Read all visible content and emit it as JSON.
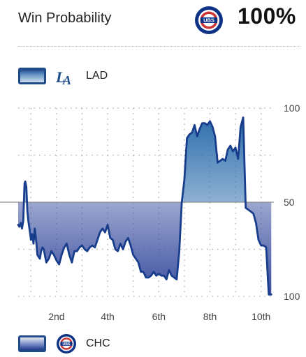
{
  "header": {
    "title": "Win Probability",
    "leader_logo": "cubs-logo-icon",
    "win_pct": "100%"
  },
  "legend": {
    "top": {
      "team": "LAD",
      "logo": "dodgers-logo-icon",
      "color": "#1f4a8a"
    },
    "bottom": {
      "team": "CHC",
      "logo": "cubs-logo-icon",
      "color": "#1f3a8a"
    }
  },
  "colors": {
    "line": "#173d8c",
    "lad_fill": "#2f6fad",
    "chc_fill": "#3b4fa0",
    "cubs_red": "#cc3433",
    "cubs_blue": "#0e3386",
    "grid": "#a6a6a6"
  },
  "chart_data": {
    "type": "area",
    "ylabel_ticks": [
      "100",
      "50",
      "100"
    ],
    "xtick_labels": [
      "2nd",
      "4th",
      "6th",
      "8th",
      "10th"
    ],
    "xtick_innings": [
      2,
      4,
      6,
      8,
      10
    ],
    "x_range": [
      0.5,
      10.5
    ],
    "baseline": 50,
    "grid": true,
    "series": [
      {
        "name": "LAD",
        "x": [
          0.5,
          0.55,
          0.6,
          0.65,
          0.7,
          0.75,
          0.78,
          0.82,
          0.86,
          0.9,
          0.95,
          1.0,
          1.05,
          1.1,
          1.15,
          1.2,
          1.25,
          1.3,
          1.35,
          1.4,
          1.45,
          1.5,
          1.6,
          1.7,
          1.8,
          1.9,
          2.0,
          2.1,
          2.2,
          2.3,
          2.4,
          2.5,
          2.6,
          2.7,
          2.8,
          2.9,
          3.0,
          3.1,
          3.2,
          3.3,
          3.4,
          3.5,
          3.6,
          3.7,
          3.8,
          3.9,
          4.0,
          4.1,
          4.2,
          4.3,
          4.4,
          4.5,
          4.6,
          4.7,
          4.8,
          4.9,
          5.0,
          5.1,
          5.2,
          5.3,
          5.4,
          5.5,
          5.6,
          5.7,
          5.8,
          5.9,
          6.0,
          6.1,
          6.2,
          6.3,
          6.4,
          6.5,
          6.6,
          6.7,
          6.8,
          6.9,
          7.0,
          7.1,
          7.2,
          7.3,
          7.4,
          7.5,
          7.6,
          7.7,
          7.8,
          7.9,
          8.0,
          8.1,
          8.2,
          8.3,
          8.4,
          8.5,
          8.6,
          8.7,
          8.8,
          8.9,
          9.0,
          9.1,
          9.2,
          9.3,
          9.4,
          9.5,
          9.6,
          9.7,
          9.8,
          9.9,
          10.0,
          10.1,
          10.2,
          10.3,
          10.4
        ],
        "y": [
          38,
          37,
          39,
          36,
          40,
          60,
          61,
          58,
          45,
          40,
          35,
          30,
          33,
          28,
          36,
          30,
          22,
          21,
          20,
          24,
          26,
          25,
          18,
          20,
          24,
          22,
          19,
          17,
          22,
          26,
          28,
          22,
          18,
          24,
          24,
          26,
          27,
          25,
          24,
          26,
          27,
          26,
          30,
          34,
          36,
          34,
          38,
          31,
          30,
          25,
          24,
          28,
          25,
          29,
          31,
          27,
          22,
          20,
          18,
          13,
          13,
          10,
          10,
          11,
          13,
          11,
          12,
          11,
          11,
          9,
          14,
          11,
          10,
          9,
          24,
          50,
          62,
          84,
          86,
          87,
          91,
          85,
          89,
          92,
          92,
          91,
          93,
          90,
          85,
          71,
          72,
          73,
          72,
          78,
          80,
          77,
          79,
          73,
          90,
          95,
          47,
          46,
          45,
          44,
          39,
          30,
          27,
          27,
          26,
          1,
          1
        ]
      }
    ]
  }
}
